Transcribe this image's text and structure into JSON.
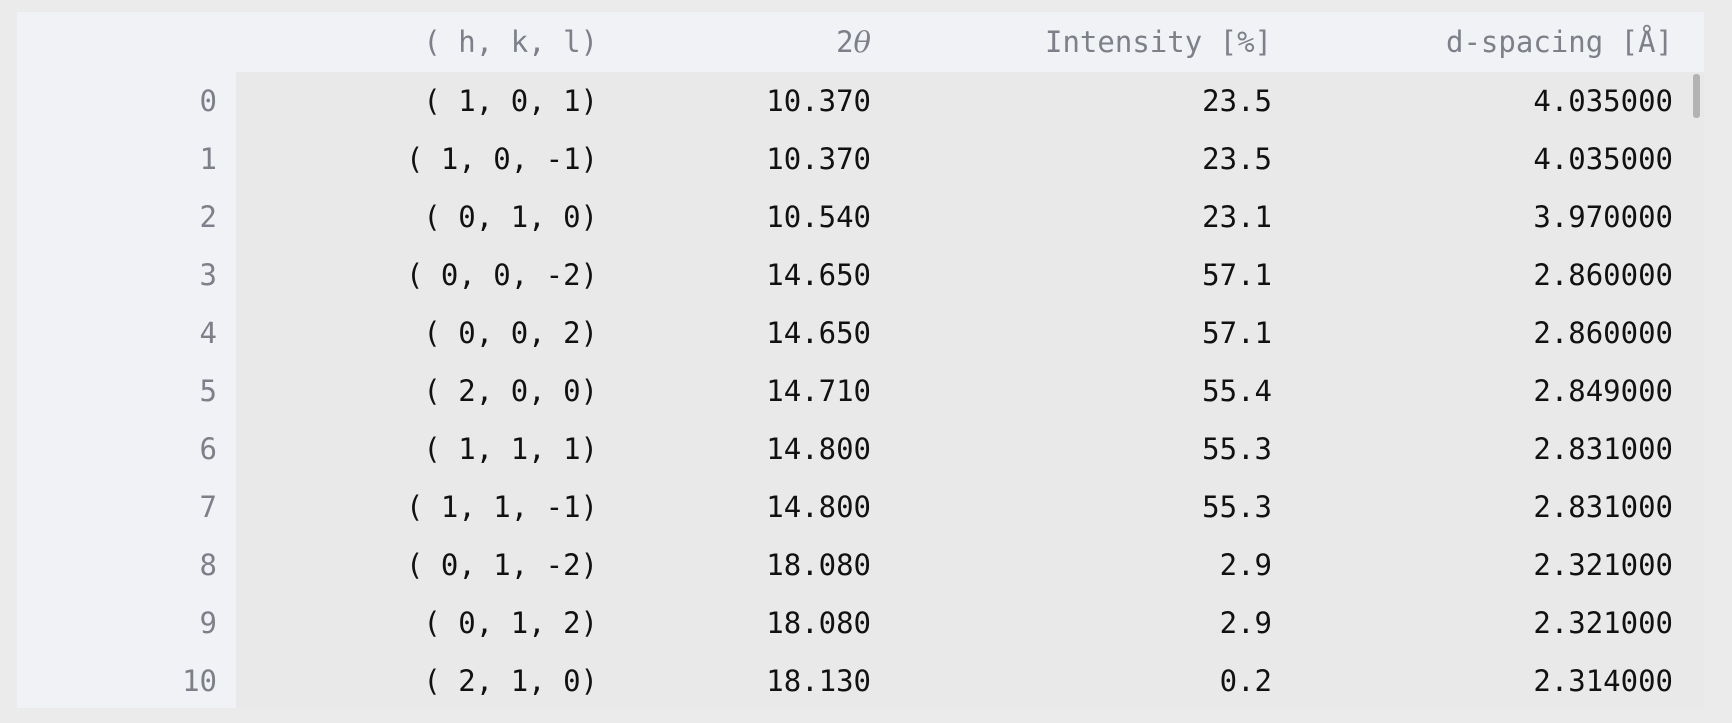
{
  "table": {
    "headers": {
      "index": "",
      "hkl": "( h, k, l)",
      "two_theta_prefix": "2",
      "two_theta_symbol": "θ",
      "intensity": "Intensity [%]",
      "d_spacing": "d-spacing [Å]"
    },
    "rows": [
      {
        "index": "0",
        "hkl": "( 1, 0, 1)",
        "two_theta": "10.370",
        "intensity": "23.5",
        "d_spacing": "4.035000"
      },
      {
        "index": "1",
        "hkl": "( 1, 0, -1)",
        "two_theta": "10.370",
        "intensity": "23.5",
        "d_spacing": "4.035000"
      },
      {
        "index": "2",
        "hkl": "( 0, 1, 0)",
        "two_theta": "10.540",
        "intensity": "23.1",
        "d_spacing": "3.970000"
      },
      {
        "index": "3",
        "hkl": "( 0, 0, -2)",
        "two_theta": "14.650",
        "intensity": "57.1",
        "d_spacing": "2.860000"
      },
      {
        "index": "4",
        "hkl": "( 0, 0, 2)",
        "two_theta": "14.650",
        "intensity": "57.1",
        "d_spacing": "2.860000"
      },
      {
        "index": "5",
        "hkl": "( 2, 0, 0)",
        "two_theta": "14.710",
        "intensity": "55.4",
        "d_spacing": "2.849000"
      },
      {
        "index": "6",
        "hkl": "( 1, 1, 1)",
        "two_theta": "14.800",
        "intensity": "55.3",
        "d_spacing": "2.831000"
      },
      {
        "index": "7",
        "hkl": "( 1, 1, -1)",
        "two_theta": "14.800",
        "intensity": "55.3",
        "d_spacing": "2.831000"
      },
      {
        "index": "8",
        "hkl": "( 0, 1, -2)",
        "two_theta": "18.080",
        "intensity": "2.9",
        "d_spacing": "2.321000"
      },
      {
        "index": "9",
        "hkl": "( 0, 1, 2)",
        "two_theta": "18.080",
        "intensity": "2.9",
        "d_spacing": "2.321000"
      },
      {
        "index": "10",
        "hkl": "( 2, 1, 0)",
        "two_theta": "18.130",
        "intensity": "0.2",
        "d_spacing": "2.314000"
      }
    ]
  },
  "colors": {
    "header_background": "#f0f2f6",
    "cell_background": "#e9e9e9",
    "header_text": "#7d8089",
    "cell_text": "#111111"
  }
}
